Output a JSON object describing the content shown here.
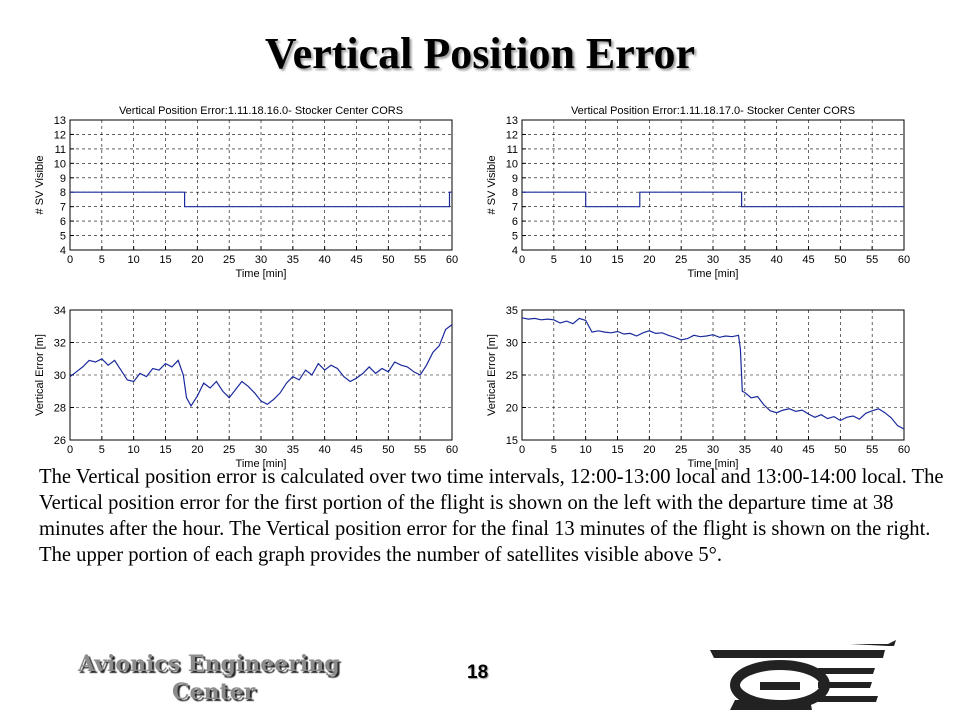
{
  "slide": {
    "title": "Vertical Position Error",
    "paragraph": "The Vertical position error is calculated over two time intervals, 12:00-13:00 local and 13:00-14:00 local. The Vertical position error for the first portion of the flight is shown on the left with the departure time at 38 minutes after the hour. The Vertical position error for the final 13 minutes of the flight is shown on the right. The upper portion of each graph provides the number of satellites visible above 5°.",
    "footer_line1": "Avionics Engineering",
    "footer_line2": "Center",
    "page_number": "18",
    "line_color": "#1a2a9c"
  },
  "chart_data": [
    {
      "type": "line",
      "title": "Vertical Position Error:1.11.18.16.0- Stocker Center CORS",
      "xlabel": "Time [min]",
      "ylabel": "# SV Visible",
      "xlim": [
        0,
        60
      ],
      "ylim": [
        4,
        13
      ],
      "xticks": [
        0,
        5,
        10,
        15,
        20,
        25,
        30,
        35,
        40,
        45,
        50,
        55,
        60
      ],
      "yticks": [
        4,
        5,
        6,
        7,
        8,
        9,
        10,
        11,
        12,
        13
      ],
      "grid": true,
      "series": [
        {
          "step": true,
          "x": [
            0,
            18,
            18,
            59.6,
            59.6,
            60
          ],
          "y": [
            8,
            8,
            7,
            7,
            8,
            8
          ]
        }
      ]
    },
    {
      "type": "line",
      "title": "Vertical Position Error:1.11.18.17.0- Stocker Center CORS",
      "xlabel": "Time [min]",
      "ylabel": "# SV Visible",
      "xlim": [
        0,
        60
      ],
      "ylim": [
        4,
        13
      ],
      "xticks": [
        0,
        5,
        10,
        15,
        20,
        25,
        30,
        35,
        40,
        45,
        50,
        55,
        60
      ],
      "yticks": [
        4,
        5,
        6,
        7,
        8,
        9,
        10,
        11,
        12,
        13
      ],
      "grid": true,
      "series": [
        {
          "step": true,
          "x": [
            0,
            10,
            10,
            18.5,
            18.5,
            34.5,
            34.5,
            60
          ],
          "y": [
            8,
            8,
            7,
            7,
            8,
            8,
            7,
            7
          ]
        }
      ]
    },
    {
      "type": "line",
      "title": "",
      "xlabel": "Time [min]",
      "ylabel": "Vertical Error [m]",
      "xlim": [
        0,
        60
      ],
      "ylim": [
        26,
        34
      ],
      "xticks": [
        0,
        5,
        10,
        15,
        20,
        25,
        30,
        35,
        40,
        45,
        50,
        55,
        60
      ],
      "yticks": [
        26,
        28,
        30,
        32,
        34
      ],
      "grid": true,
      "series": [
        {
          "x": [
            0,
            1,
            2,
            3,
            4,
            5,
            6,
            7,
            8,
            9,
            10,
            11,
            12,
            13,
            14,
            15,
            16,
            17,
            17.8,
            18.3,
            19,
            20,
            21,
            22,
            23,
            24,
            25,
            26,
            27,
            28,
            29,
            30,
            31,
            32,
            33,
            34,
            35,
            36,
            37,
            38,
            39,
            40,
            41,
            42,
            43,
            44,
            45,
            46,
            47,
            48,
            49,
            50,
            51,
            52,
            53,
            54,
            55,
            56,
            57,
            58,
            59,
            60
          ],
          "y": [
            29.9,
            30.2,
            30.5,
            30.9,
            30.8,
            31.0,
            30.6,
            30.9,
            30.3,
            29.7,
            29.6,
            30.1,
            29.9,
            30.4,
            30.3,
            30.7,
            30.5,
            30.9,
            30.0,
            28.6,
            28.1,
            28.7,
            29.5,
            29.2,
            29.6,
            29.0,
            28.6,
            29.1,
            29.6,
            29.3,
            28.9,
            28.4,
            28.2,
            28.5,
            28.9,
            29.5,
            29.9,
            29.7,
            30.3,
            30.0,
            30.7,
            30.3,
            30.6,
            30.4,
            29.9,
            29.6,
            29.8,
            30.1,
            30.5,
            30.1,
            30.4,
            30.2,
            30.8,
            30.6,
            30.5,
            30.2,
            30.0,
            30.6,
            31.4,
            31.8,
            32.8,
            33.1
          ]
        }
      ]
    },
    {
      "type": "line",
      "title": "",
      "xlabel": "Time [min]",
      "ylabel": "Vertical Error [m]",
      "xlim": [
        0,
        60
      ],
      "ylim": [
        15,
        35
      ],
      "xticks": [
        0,
        5,
        10,
        15,
        20,
        25,
        30,
        35,
        40,
        45,
        50,
        55,
        60
      ],
      "yticks": [
        15,
        20,
        25,
        30,
        35
      ],
      "grid": true,
      "series": [
        {
          "x": [
            0,
            1,
            2,
            3,
            4,
            5,
            6,
            7,
            8,
            9,
            10,
            11,
            12,
            13,
            14,
            15,
            16,
            17,
            18,
            19,
            20,
            21,
            22,
            23,
            24,
            25,
            26,
            27,
            28,
            29,
            30,
            31,
            32,
            33,
            34,
            34.3,
            34.6,
            35,
            36,
            37,
            38,
            39,
            40,
            41,
            42,
            43,
            44,
            45,
            46,
            47,
            48,
            49,
            50,
            51,
            52,
            53,
            54,
            55,
            56,
            57,
            58,
            59,
            60
          ],
          "y": [
            33.8,
            33.6,
            33.7,
            33.5,
            33.6,
            33.5,
            33.0,
            33.3,
            32.9,
            33.7,
            33.4,
            31.6,
            31.8,
            31.6,
            31.5,
            31.7,
            31.3,
            31.4,
            31.0,
            31.5,
            31.8,
            31.4,
            31.5,
            31.1,
            30.8,
            30.4,
            30.6,
            31.1,
            30.9,
            31.0,
            31.2,
            30.8,
            31.0,
            30.9,
            31.1,
            29.0,
            22.5,
            22.3,
            21.5,
            21.7,
            20.4,
            19.5,
            19.2,
            19.6,
            19.8,
            19.4,
            19.6,
            19.0,
            18.5,
            18.9,
            18.3,
            18.6,
            18.0,
            18.5,
            18.7,
            18.2,
            19.1,
            19.5,
            19.8,
            19.2,
            18.4,
            17.2,
            16.7
          ]
        }
      ]
    }
  ]
}
